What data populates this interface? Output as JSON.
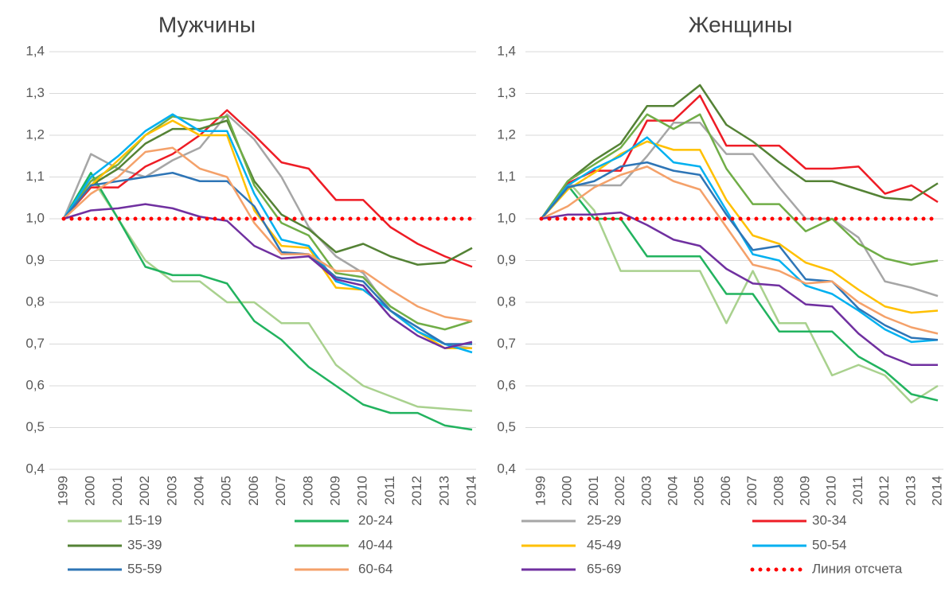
{
  "chart_data": [
    {
      "type": "line",
      "title": "Мужчины",
      "categories": [
        "1999",
        "2000",
        "2001",
        "2002",
        "2003",
        "2004",
        "2005",
        "2006",
        "2007",
        "2008",
        "2009",
        "2010",
        "2011",
        "2012",
        "2013",
        "2014"
      ],
      "ylim": [
        0.4,
        1.4
      ],
      "yticks": [
        {
          "value": 0.4,
          "label": "0,4"
        },
        {
          "value": 0.5,
          "label": "0,5"
        },
        {
          "value": 0.6,
          "label": "0,6"
        },
        {
          "value": 0.7,
          "label": "0,7"
        },
        {
          "value": 0.8,
          "label": "0,8"
        },
        {
          "value": 0.9,
          "label": "0,9"
        },
        {
          "value": 1.0,
          "label": "1,0"
        },
        {
          "value": 1.1,
          "label": "1,1"
        },
        {
          "value": 1.2,
          "label": "1,2"
        },
        {
          "value": 1.3,
          "label": "1,3"
        },
        {
          "value": 1.4,
          "label": "1,4"
        }
      ],
      "grid": true,
      "series": [
        {
          "name": "15-19",
          "color": "#a9d18e",
          "values": [
            1.0,
            1.1,
            1.0,
            0.9,
            0.85,
            0.85,
            0.8,
            0.8,
            0.75,
            0.75,
            0.65,
            0.6,
            0.575,
            0.55,
            0.545,
            0.54
          ]
        },
        {
          "name": "20-24",
          "color": "#22b35f",
          "values": [
            1.0,
            1.11,
            1.0,
            0.885,
            0.865,
            0.865,
            0.845,
            0.755,
            0.71,
            0.645,
            0.6,
            0.555,
            0.535,
            0.535,
            0.505,
            0.495
          ]
        },
        {
          "name": "25-29",
          "color": "#a6a6a6",
          "values": [
            1.0,
            1.155,
            1.12,
            1.1,
            1.14,
            1.17,
            1.25,
            1.19,
            1.1,
            0.98,
            0.91,
            0.87,
            0.78,
            0.73,
            0.7,
            0.69
          ]
        },
        {
          "name": "30-34",
          "color": "#ee1c25",
          "values": [
            1.0,
            1.075,
            1.075,
            1.125,
            1.155,
            1.2,
            1.26,
            1.2,
            1.135,
            1.12,
            1.045,
            1.045,
            0.98,
            0.94,
            0.91,
            0.885
          ]
        },
        {
          "name": "35-39",
          "color": "#548235",
          "values": [
            1.0,
            1.08,
            1.12,
            1.18,
            1.215,
            1.215,
            1.235,
            1.09,
            1.01,
            0.975,
            0.92,
            0.94,
            0.91,
            0.89,
            0.895,
            0.93
          ]
        },
        {
          "name": "40-44",
          "color": "#70ad47",
          "values": [
            1.0,
            1.09,
            1.13,
            1.2,
            1.245,
            1.235,
            1.245,
            1.08,
            0.99,
            0.96,
            0.87,
            0.86,
            0.79,
            0.75,
            0.735,
            0.755
          ]
        },
        {
          "name": "45-49",
          "color": "#ffc000",
          "values": [
            1.0,
            1.08,
            1.14,
            1.2,
            1.235,
            1.2,
            1.2,
            1.02,
            0.935,
            0.93,
            0.835,
            0.83,
            0.78,
            0.73,
            0.69,
            0.69
          ]
        },
        {
          "name": "50-54",
          "color": "#00b0f0",
          "values": [
            1.0,
            1.1,
            1.15,
            1.21,
            1.25,
            1.21,
            1.21,
            1.06,
            0.95,
            0.935,
            0.85,
            0.83,
            0.78,
            0.73,
            0.7,
            0.68
          ]
        },
        {
          "name": "55-59",
          "color": "#2e75b6",
          "values": [
            1.0,
            1.08,
            1.09,
            1.1,
            1.11,
            1.09,
            1.09,
            1.03,
            0.92,
            0.915,
            0.86,
            0.85,
            0.78,
            0.74,
            0.7,
            0.7
          ]
        },
        {
          "name": "60-64",
          "color": "#f4a16a",
          "values": [
            1.0,
            1.06,
            1.1,
            1.16,
            1.17,
            1.12,
            1.1,
            0.99,
            0.915,
            0.915,
            0.875,
            0.875,
            0.83,
            0.79,
            0.765,
            0.755
          ]
        },
        {
          "name": "65-69",
          "color": "#7030a0",
          "values": [
            1.0,
            1.02,
            1.025,
            1.035,
            1.025,
            1.005,
            0.995,
            0.935,
            0.905,
            0.91,
            0.855,
            0.84,
            0.765,
            0.72,
            0.69,
            0.705
          ]
        },
        {
          "name": "Линия отсчета",
          "color": "#ff0000",
          "style": "dotted",
          "values": [
            1,
            1,
            1,
            1,
            1,
            1,
            1,
            1,
            1,
            1,
            1,
            1,
            1,
            1,
            1,
            1
          ]
        }
      ]
    },
    {
      "type": "line",
      "title": "Женщины",
      "categories": [
        "1999",
        "2000",
        "2001",
        "2002",
        "2003",
        "2004",
        "2005",
        "2006",
        "2007",
        "2008",
        "2009",
        "2010",
        "2011",
        "2012",
        "2013",
        "2014"
      ],
      "ylim": [
        0.4,
        1.4
      ],
      "yticks": [
        {
          "value": 0.4,
          "label": "0,4"
        },
        {
          "value": 0.5,
          "label": "0,5"
        },
        {
          "value": 0.6,
          "label": "0,6"
        },
        {
          "value": 0.7,
          "label": "0,7"
        },
        {
          "value": 0.8,
          "label": "0,8"
        },
        {
          "value": 0.9,
          "label": "0,9"
        },
        {
          "value": 1.0,
          "label": "1,0"
        },
        {
          "value": 1.1,
          "label": "1,1"
        },
        {
          "value": 1.2,
          "label": "1,2"
        },
        {
          "value": 1.3,
          "label": "1,3"
        },
        {
          "value": 1.4,
          "label": "1,4"
        }
      ],
      "grid": true,
      "series": [
        {
          "name": "15-19",
          "color": "#a9d18e",
          "values": [
            1.0,
            1.09,
            1.02,
            0.875,
            0.875,
            0.875,
            0.875,
            0.75,
            0.875,
            0.75,
            0.75,
            0.625,
            0.65,
            0.625,
            0.56,
            0.6
          ]
        },
        {
          "name": "20-24",
          "color": "#22b35f",
          "values": [
            1.0,
            1.08,
            1.0,
            1.0,
            0.91,
            0.91,
            0.91,
            0.82,
            0.82,
            0.73,
            0.73,
            0.73,
            0.67,
            0.635,
            0.58,
            0.565
          ]
        },
        {
          "name": "25-29",
          "color": "#a6a6a6",
          "values": [
            1.0,
            1.08,
            1.08,
            1.08,
            1.15,
            1.23,
            1.23,
            1.155,
            1.155,
            1.075,
            1.0,
            1.0,
            0.955,
            0.85,
            0.835,
            0.815
          ]
        },
        {
          "name": "30-34",
          "color": "#ee1c25",
          "values": [
            1.0,
            1.085,
            1.115,
            1.115,
            1.235,
            1.235,
            1.295,
            1.175,
            1.175,
            1.175,
            1.12,
            1.12,
            1.125,
            1.06,
            1.08,
            1.04
          ]
        },
        {
          "name": "35-39",
          "color": "#548235",
          "values": [
            1.0,
            1.09,
            1.14,
            1.18,
            1.27,
            1.27,
            1.32,
            1.225,
            1.185,
            1.135,
            1.09,
            1.09,
            1.07,
            1.05,
            1.045,
            1.085
          ]
        },
        {
          "name": "40-44",
          "color": "#70ad47",
          "values": [
            1.0,
            1.09,
            1.13,
            1.17,
            1.25,
            1.215,
            1.25,
            1.12,
            1.035,
            1.035,
            0.97,
            1.0,
            0.94,
            0.905,
            0.89,
            0.9
          ]
        },
        {
          "name": "45-49",
          "color": "#ffc000",
          "values": [
            1.0,
            1.07,
            1.11,
            1.155,
            1.185,
            1.165,
            1.165,
            1.045,
            0.96,
            0.94,
            0.895,
            0.875,
            0.83,
            0.79,
            0.775,
            0.78
          ]
        },
        {
          "name": "50-54",
          "color": "#00b0f0",
          "values": [
            1.0,
            1.08,
            1.12,
            1.15,
            1.195,
            1.135,
            1.125,
            1.02,
            0.915,
            0.9,
            0.84,
            0.82,
            0.78,
            0.735,
            0.705,
            0.71
          ]
        },
        {
          "name": "55-59",
          "color": "#2e75b6",
          "values": [
            1.0,
            1.075,
            1.09,
            1.125,
            1.135,
            1.115,
            1.105,
            1.01,
            0.925,
            0.935,
            0.855,
            0.85,
            0.785,
            0.745,
            0.715,
            0.71
          ]
        },
        {
          "name": "60-64",
          "color": "#f4a16a",
          "values": [
            1.0,
            1.03,
            1.075,
            1.105,
            1.125,
            1.09,
            1.07,
            0.98,
            0.89,
            0.875,
            0.845,
            0.85,
            0.8,
            0.765,
            0.74,
            0.725
          ]
        },
        {
          "name": "65-69",
          "color": "#7030a0",
          "values": [
            1.0,
            1.01,
            1.01,
            1.015,
            0.985,
            0.95,
            0.935,
            0.88,
            0.845,
            0.84,
            0.795,
            0.79,
            0.725,
            0.675,
            0.65,
            0.65
          ]
        },
        {
          "name": "Линия отсчета",
          "color": "#ff0000",
          "style": "dotted",
          "values": [
            1,
            1,
            1,
            1,
            1,
            1,
            1,
            1,
            1,
            1,
            1,
            1,
            1,
            1,
            1,
            1
          ]
        }
      ]
    }
  ]
}
